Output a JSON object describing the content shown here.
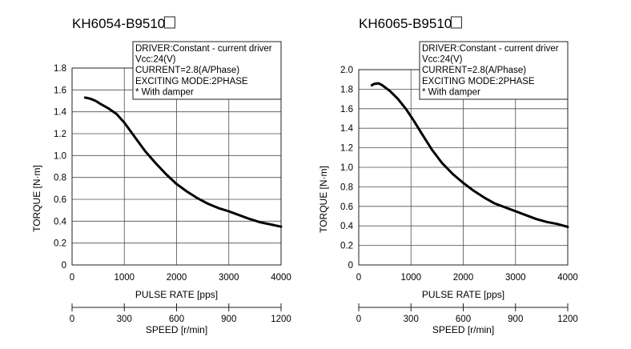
{
  "chart_data": [
    {
      "type": "line",
      "title": "KH6054-B9510",
      "title_box": "□",
      "xlabel": "PULSE RATE [pps]",
      "ylabel": "TORQUE",
      "yunit": "[N·m]",
      "xlim": [
        0,
        4000
      ],
      "ylim": [
        0,
        1.8
      ],
      "xticks": [
        "0",
        "1000",
        "2000",
        "3000",
        "4000"
      ],
      "yticks": [
        "0",
        "0.2",
        "0.4",
        "0.6",
        "0.8",
        "1.0",
        "1.2",
        "1.4",
        "1.6",
        "1.8"
      ],
      "secondary_axis": {
        "label": "SPEED [r/min]",
        "ticks": [
          "0",
          "300",
          "600",
          "900",
          "1200"
        ],
        "range": [
          0,
          1200
        ]
      },
      "grid": true,
      "annotation": [
        "DRIVER:Constant - current driver",
        "Vcc:24(V)",
        "CURRENT=2.8(A/Phase)",
        "EXCITING MODE:2PHASE",
        "* With damper"
      ],
      "series": [
        {
          "x": [
            250,
            350,
            450,
            550,
            700,
            850,
            1000,
            1200,
            1400,
            1600,
            1800,
            2000,
            2200,
            2400,
            2600,
            2800,
            3000,
            3200,
            3400,
            3600,
            3800,
            4000
          ],
          "y": [
            1.53,
            1.52,
            1.5,
            1.47,
            1.43,
            1.38,
            1.3,
            1.17,
            1.04,
            0.93,
            0.83,
            0.74,
            0.67,
            0.61,
            0.56,
            0.52,
            0.49,
            0.455,
            0.42,
            0.39,
            0.37,
            0.35
          ]
        }
      ]
    },
    {
      "type": "line",
      "title": "KH6065-B9510",
      "title_box": "□",
      "xlabel": "PULSE RATE [pps]",
      "ylabel": "TORQUE",
      "yunit": "[N·m]",
      "xlim": [
        0,
        4000
      ],
      "ylim": [
        0,
        2.0
      ],
      "xticks": [
        "0",
        "1000",
        "2000",
        "3000",
        "4000"
      ],
      "yticks": [
        "0",
        "0.2",
        "0.4",
        "0.6",
        "0.8",
        "1.0",
        "1.2",
        "1.4",
        "1.6",
        "1.8",
        "2.0"
      ],
      "secondary_axis": {
        "label": "SPEED [r/min]",
        "ticks": [
          "0",
          "300",
          "600",
          "900",
          "1200"
        ],
        "range": [
          0,
          1200
        ]
      },
      "grid": true,
      "annotation": [
        "DRIVER:Constant - current driver",
        "Vcc:24(V)",
        "CURRENT=2.8(A/Phase)",
        "EXCITING MODE:2PHASE",
        "* With damper"
      ],
      "series": [
        {
          "x": [
            250,
            300,
            380,
            450,
            600,
            750,
            900,
            1050,
            1200,
            1400,
            1600,
            1800,
            2000,
            2200,
            2400,
            2600,
            2800,
            3000,
            3200,
            3400,
            3600,
            3800,
            4000
          ],
          "y": [
            1.84,
            1.855,
            1.86,
            1.84,
            1.78,
            1.7,
            1.6,
            1.48,
            1.35,
            1.18,
            1.04,
            0.93,
            0.84,
            0.76,
            0.69,
            0.63,
            0.59,
            0.55,
            0.51,
            0.47,
            0.44,
            0.42,
            0.39
          ]
        }
      ]
    }
  ]
}
